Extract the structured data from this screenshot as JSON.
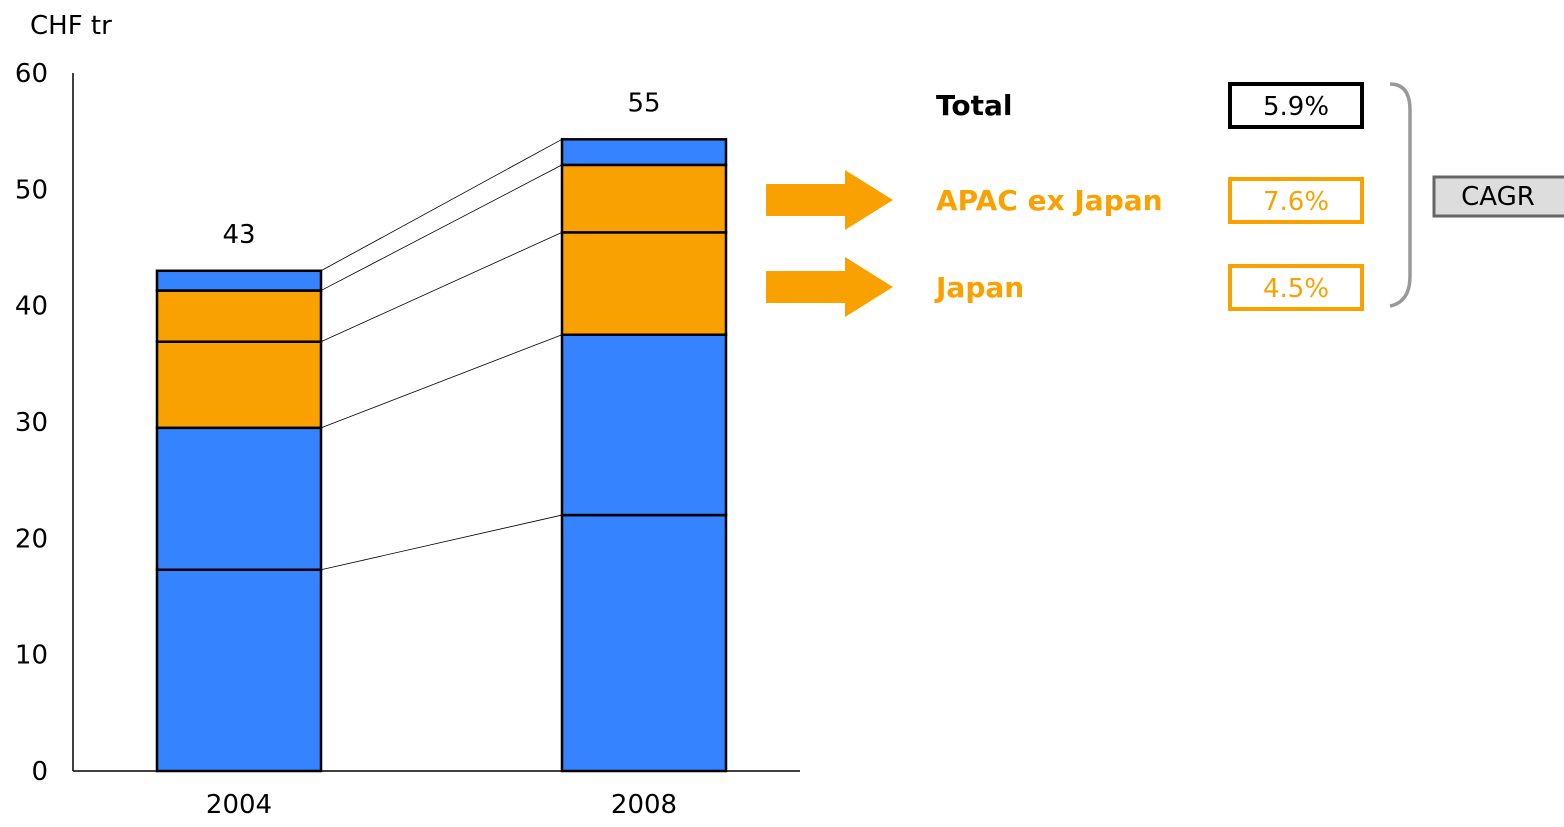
{
  "chart_data": {
    "type": "bar",
    "stacked": true,
    "unit_label": "CHF tr",
    "categories": [
      "2004",
      "2008"
    ],
    "ylim": [
      0,
      60
    ],
    "yticks": [
      0,
      10,
      20,
      30,
      40,
      50,
      60
    ],
    "grid": false,
    "segment_colors": [
      "#3683FF",
      "#3683FF",
      "#F9A100",
      "#F9A100",
      "#3683FF"
    ],
    "series": [
      {
        "values": [
          17.3,
          22.0
        ]
      },
      {
        "values": [
          12.2,
          15.5
        ]
      },
      {
        "values": [
          7.4,
          8.8
        ]
      },
      {
        "values": [
          4.4,
          5.8
        ]
      },
      {
        "values": [
          1.7,
          2.2
        ]
      }
    ],
    "totals": [
      "43",
      "55"
    ]
  },
  "cagr": {
    "label": "CAGR",
    "rows": [
      {
        "name": "Total",
        "value": "5.9%",
        "color": "#000000",
        "arrow": false
      },
      {
        "name": "APAC ex Japan",
        "value": "7.6%",
        "color": "#F9A100",
        "arrow": true
      },
      {
        "name": "Japan",
        "value": "4.5%",
        "color": "#F9A100",
        "arrow": true
      }
    ],
    "bracket_color": "#999999",
    "tag_fill": "#DDDDDD",
    "tag_border": "#666666"
  }
}
